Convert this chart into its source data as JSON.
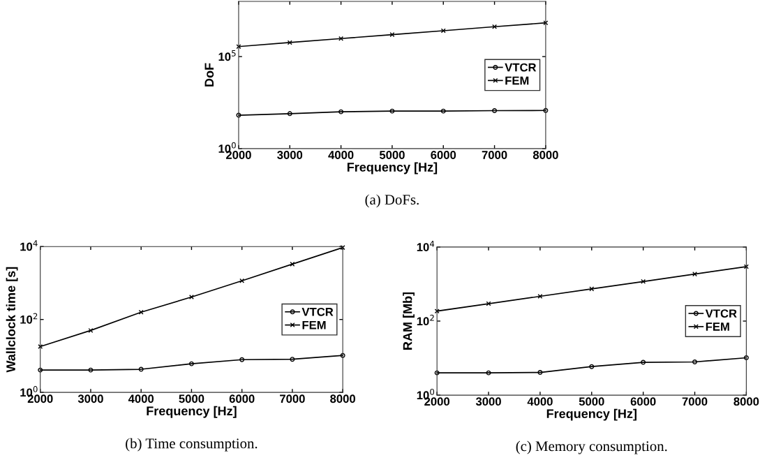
{
  "chart_data": [
    {
      "type": "line",
      "xlabel": "Frequency [Hz]",
      "ylabel": "DoF",
      "annotations": [
        "(a) DoFs."
      ],
      "log": "y",
      "grid": false,
      "legend": "right",
      "x": [
        2000,
        3000,
        4000,
        5000,
        6000,
        7000,
        8000
      ],
      "xlim": [
        2000,
        8000
      ],
      "xticks": [
        2000,
        3000,
        4000,
        5000,
        6000,
        7000,
        8000
      ],
      "ylim": [
        1,
        100000000
      ],
      "yticks": [
        {
          "value": 1,
          "label": "10$^{0}$"
        },
        {
          "value": 100000,
          "label": "10$^{5}$"
        }
      ],
      "series": [
        {
          "name": "VTCR",
          "color": "#000000",
          "marker": "circle",
          "values": [
            65,
            79,
            100,
            109,
            109,
            115,
            118
          ]
        },
        {
          "name": "FEM",
          "color": "#000000",
          "marker": "cross",
          "values": [
            350000,
            580000,
            950000,
            1560000,
            2550000,
            4200000,
            6800000
          ]
        }
      ]
    },
    {
      "type": "line",
      "xlabel": "Frequency [Hz]",
      "ylabel": "Wallclock time [s]",
      "annotations": [
        "(b) Time consumption."
      ],
      "log": "y",
      "grid": false,
      "legend": "right",
      "x": [
        2000,
        3000,
        4000,
        5000,
        6000,
        7000,
        8000
      ],
      "xlim": [
        2000,
        8000
      ],
      "xticks": [
        2000,
        3000,
        4000,
        5000,
        6000,
        7000,
        8000
      ],
      "ylim": [
        1,
        10000
      ],
      "yticks": [
        {
          "value": 1,
          "label": "10$^{0}$"
        },
        {
          "value": 100,
          "label": "10$^{2}$"
        },
        {
          "value": 10000,
          "label": "10$^{4}$"
        }
      ],
      "series": [
        {
          "name": "VTCR",
          "color": "#000000",
          "marker": "circle",
          "values": [
            4.1,
            4.1,
            4.3,
            6.1,
            7.9,
            8.1,
            10.3
          ]
        },
        {
          "name": "FEM",
          "color": "#000000",
          "marker": "cross",
          "values": [
            18,
            50,
            158,
            413,
            1150,
            3300,
            9400
          ]
        }
      ]
    },
    {
      "type": "line",
      "xlabel": "Frequency [Hz]",
      "ylabel": "RAM [Mb]",
      "annotations": [
        "(c) Memory consumption."
      ],
      "log": "y",
      "grid": false,
      "legend": "right",
      "x": [
        2000,
        3000,
        4000,
        5000,
        6000,
        7000,
        8000
      ],
      "xlim": [
        2000,
        8000
      ],
      "xticks": [
        2000,
        3000,
        4000,
        5000,
        6000,
        7000,
        8000
      ],
      "ylim": [
        1,
        10000
      ],
      "yticks": [
        {
          "value": 1,
          "label": "10$^{0}$"
        },
        {
          "value": 100,
          "label": "10$^{2}$"
        },
        {
          "value": 10000,
          "label": "10$^{4}$"
        }
      ],
      "series": [
        {
          "name": "VTCR",
          "color": "#000000",
          "marker": "circle",
          "values": [
            4.0,
            4.0,
            4.1,
            5.9,
            7.7,
            7.9,
            10.2
          ]
        },
        {
          "name": "FEM",
          "color": "#000000",
          "marker": "cross",
          "values": [
            186,
            295,
            466,
            740,
            1170,
            1860,
            2950
          ]
        }
      ]
    }
  ]
}
